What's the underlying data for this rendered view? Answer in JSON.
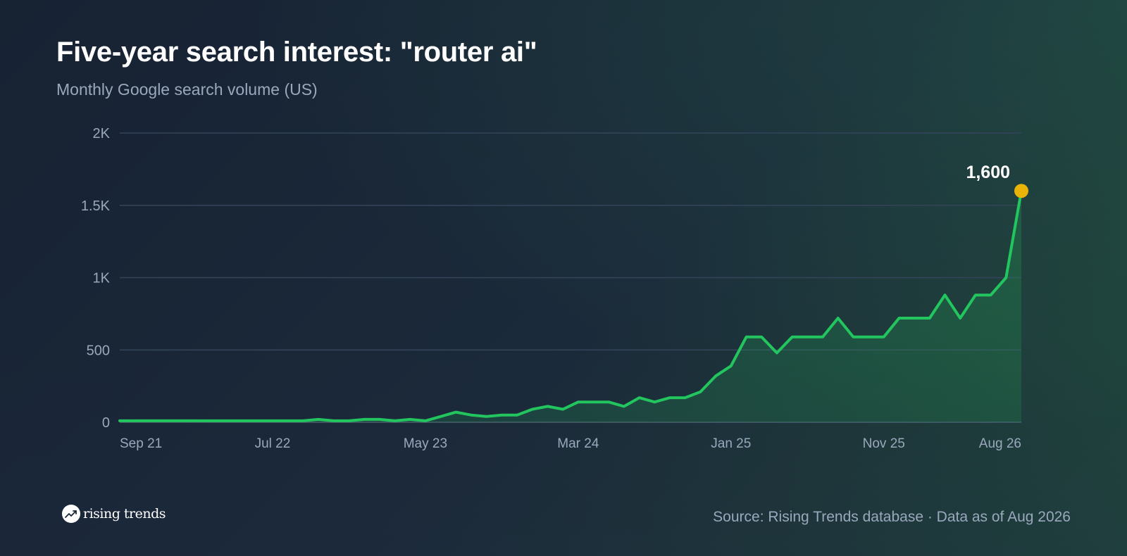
{
  "header": {
    "title": "Five-year search interest: \"router ai\"",
    "subtitle": "Monthly Google search volume (US)"
  },
  "footer": {
    "brand": "rising trends",
    "source": "Source: Rising Trends database · Data as of Aug 2026"
  },
  "colors": {
    "line": "#22c55e",
    "highlight_point": "#eab308",
    "grid": "#34455a",
    "axis_text": "#9aa8bd"
  },
  "chart_data": {
    "type": "area",
    "title": "Five-year search interest: \"router ai\"",
    "subtitle": "Monthly Google search volume (US)",
    "xlabel": "",
    "ylabel": "",
    "ylim": [
      0,
      2000
    ],
    "yticks": [
      0,
      500,
      1000,
      1500,
      2000
    ],
    "ytick_labels": [
      "0",
      "500",
      "1K",
      "1.5K",
      "2K"
    ],
    "x_tick_labels": [
      "Sep 21",
      "Jul 22",
      "May 23",
      "Mar 24",
      "Jan 25",
      "Nov 25",
      "Aug 26"
    ],
    "x_tick_indices": [
      0,
      10,
      20,
      30,
      40,
      50,
      59
    ],
    "grid": true,
    "series": [
      {
        "x": [
          "Sep 21",
          "Oct 21",
          "Nov 21",
          "Dec 21",
          "Jan 22",
          "Feb 22",
          "Mar 22",
          "Apr 22",
          "May 22",
          "Jun 22",
          "Jul 22",
          "Aug 22",
          "Sep 22",
          "Oct 22",
          "Nov 22",
          "Dec 22",
          "Jan 23",
          "Feb 23",
          "Mar 23",
          "Apr 23",
          "May 23",
          "Jun 23",
          "Jul 23",
          "Aug 23",
          "Sep 23",
          "Oct 23",
          "Nov 23",
          "Dec 23",
          "Jan 24",
          "Feb 24",
          "Mar 24",
          "Apr 24",
          "May 24",
          "Jun 24",
          "Jul 24",
          "Aug 24",
          "Sep 24",
          "Oct 24",
          "Nov 24",
          "Dec 24",
          "Jan 25",
          "Feb 25",
          "Mar 25",
          "Apr 25",
          "May 25",
          "Jun 25",
          "Jul 25",
          "Aug 25",
          "Sep 25",
          "Oct 25",
          "Nov 25",
          "Dec 25",
          "Jan 26",
          "Feb 26",
          "Mar 26",
          "Apr 26",
          "May 26",
          "Jun 26",
          "Jul 26",
          "Aug 26"
        ],
        "values": [
          10,
          10,
          10,
          10,
          10,
          10,
          10,
          10,
          10,
          10,
          10,
          10,
          10,
          20,
          10,
          10,
          20,
          20,
          10,
          20,
          10,
          40,
          70,
          50,
          40,
          50,
          50,
          90,
          110,
          90,
          140,
          140,
          140,
          110,
          170,
          140,
          170,
          170,
          210,
          320,
          390,
          590,
          590,
          480,
          590,
          590,
          590,
          720,
          590,
          590,
          590,
          720,
          720,
          720,
          880,
          720,
          880,
          880,
          1000,
          1600
        ]
      }
    ],
    "annotations": [
      {
        "label": "1,600",
        "index": 59,
        "value": 1600
      }
    ]
  }
}
